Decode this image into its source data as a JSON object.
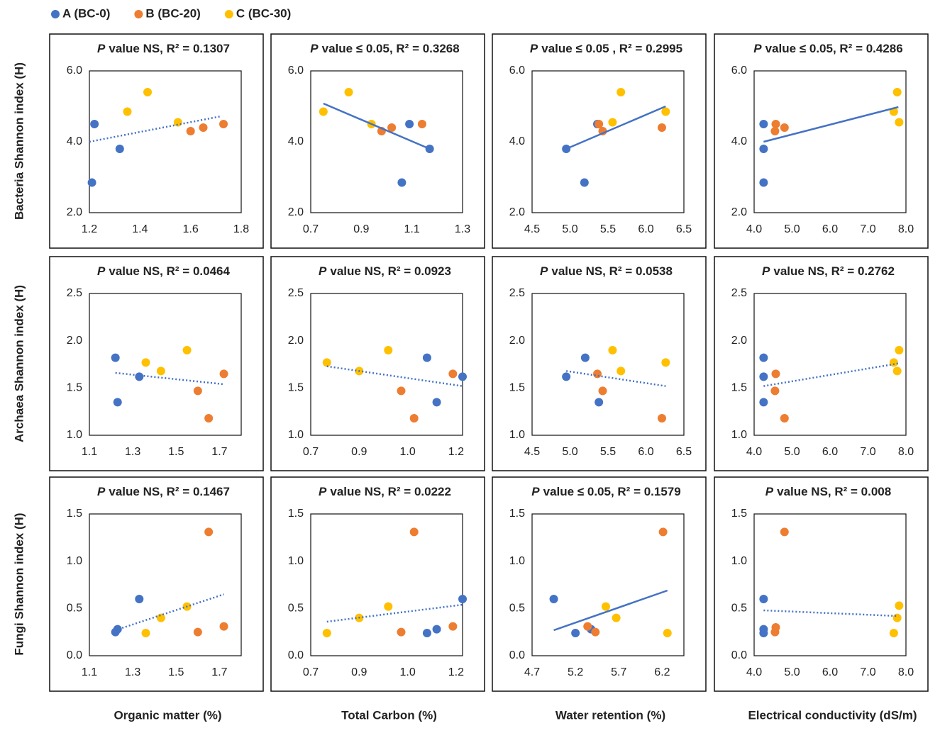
{
  "legend": [
    {
      "name": "A (BC-0)",
      "color": "#4472c4"
    },
    {
      "name": "B (BC-20)",
      "color": "#ed7d31"
    },
    {
      "name": "C (BC-30)",
      "color": "#ffc000"
    }
  ],
  "row_labels": [
    "Bacteria Shannon index (H)",
    "Archaea Shannon index (H)",
    "Fungi Shannon index (H)"
  ],
  "column_labels": [
    "Organic matter (%)",
    "Total Carbon (%)",
    "Water retention (%)",
    "Electrical conductivity (dS/m)"
  ],
  "chart_data": [
    {
      "type": "scatter",
      "p": "P",
      "title": "value NS, R² = 0.1307",
      "xlim": [
        1.2,
        1.8
      ],
      "xticks": [
        1.2,
        1.4,
        1.6,
        1.8
      ],
      "ylim": [
        2,
        6
      ],
      "yticks": [
        {
          "value": 2,
          "label": "2.0"
        },
        {
          "value": 4,
          "label": "4.0"
        },
        {
          "value": 6,
          "label": "6.0"
        }
      ],
      "series": [
        {
          "x": [
            1.22,
            1.32,
            1.21
          ],
          "y": [
            4.5,
            3.8,
            2.85
          ]
        },
        {
          "x": [
            1.6,
            1.65,
            1.73
          ],
          "y": [
            4.3,
            4.4,
            4.5
          ]
        },
        {
          "x": [
            1.35,
            1.43,
            1.55
          ],
          "y": [
            4.85,
            5.4,
            4.55
          ]
        }
      ],
      "trendline": {
        "x": [
          1.2,
          1.72
        ],
        "y": [
          4.0,
          4.72
        ],
        "style": "dotted"
      }
    },
    {
      "type": "scatter",
      "p": "P",
      "title": "value ≤ 0.05, R² = 0.3268",
      "xlim": [
        0.7,
        1.3
      ],
      "xticks": [
        0.7,
        0.9,
        1.1,
        1.3
      ],
      "ylim": [
        2,
        6
      ],
      "yticks": [
        {
          "value": 2,
          "label": "2.0"
        },
        {
          "value": 4,
          "label": "4.0"
        },
        {
          "value": 6,
          "label": "6.0"
        }
      ],
      "series": [
        {
          "x": [
            1.09,
            1.06,
            1.17
          ],
          "y": [
            4.5,
            2.85,
            3.8
          ]
        },
        {
          "x": [
            0.98,
            1.02,
            1.14
          ],
          "y": [
            4.3,
            4.4,
            4.5
          ]
        },
        {
          "x": [
            0.75,
            0.85,
            0.94
          ],
          "y": [
            4.85,
            5.4,
            4.5
          ]
        }
      ],
      "trendline": {
        "x": [
          0.75,
          1.17
        ],
        "y": [
          5.08,
          3.8
        ],
        "style": "solid"
      }
    },
    {
      "type": "scatter",
      "p": "P",
      "title": "value ≤ 0.05 , R² = 0.2995",
      "xlim": [
        4.5,
        6.5
      ],
      "xticks": [
        4.5,
        {
          "value": 5,
          "label": "5.0"
        },
        5.5,
        {
          "value": 6,
          "label": "6.0"
        },
        6.5
      ],
      "ylim": [
        2,
        6
      ],
      "yticks": [
        {
          "value": 2,
          "label": "2.0"
        },
        {
          "value": 4,
          "label": "4.0"
        },
        {
          "value": 6,
          "label": "6.0"
        }
      ],
      "series": [
        {
          "x": [
            4.95,
            5.19,
            5.36
          ],
          "y": [
            3.8,
            2.85,
            4.5
          ]
        },
        {
          "x": [
            5.38,
            5.43,
            6.21
          ],
          "y": [
            4.5,
            4.3,
            4.4
          ]
        },
        {
          "x": [
            5.56,
            5.67,
            6.26
          ],
          "y": [
            4.55,
            5.4,
            4.85
          ]
        }
      ],
      "trendline": {
        "x": [
          4.95,
          6.26
        ],
        "y": [
          3.8,
          5.0
        ],
        "style": "solid"
      }
    },
    {
      "type": "scatter",
      "p": "P",
      "title": "value ≤ 0.05, R² = 0.4286",
      "xlim": [
        4,
        8
      ],
      "xticks": [
        {
          "value": 4,
          "label": "4.0"
        },
        {
          "value": 5,
          "label": "5.0"
        },
        {
          "value": 6,
          "label": "6.0"
        },
        {
          "value": 7,
          "label": "7.0"
        },
        {
          "value": 8,
          "label": "8.0"
        }
      ],
      "ylim": [
        2,
        6
      ],
      "yticks": [
        {
          "value": 2,
          "label": "2.0"
        },
        {
          "value": 4,
          "label": "4.0"
        },
        {
          "value": 6,
          "label": "6.0"
        }
      ],
      "series": [
        {
          "x": [
            4.25,
            4.25,
            4.25
          ],
          "y": [
            4.5,
            3.8,
            2.85
          ]
        },
        {
          "x": [
            4.55,
            4.57,
            4.8
          ],
          "y": [
            4.3,
            4.5,
            4.4
          ]
        },
        {
          "x": [
            7.77,
            7.68,
            7.82
          ],
          "y": [
            5.4,
            4.85,
            4.55
          ]
        }
      ],
      "trendline": {
        "x": [
          4.25,
          7.8
        ],
        "y": [
          4.0,
          4.98
        ],
        "style": "solid"
      }
    },
    {
      "type": "scatter",
      "p": "P",
      "title": "value NS, R² = 0.0464",
      "xlim": [
        1.1,
        1.8
      ],
      "xticks": [
        1.1,
        1.3,
        1.5,
        1.7
      ],
      "ylim": [
        1,
        2.5
      ],
      "yticks": [
        {
          "value": 1,
          "label": "1.0"
        },
        1.5,
        {
          "value": 2,
          "label": "2.0"
        },
        2.5
      ],
      "series": [
        {
          "x": [
            1.22,
            1.23,
            1.33
          ],
          "y": [
            1.82,
            1.35,
            1.62
          ]
        },
        {
          "x": [
            1.6,
            1.65,
            1.72
          ],
          "y": [
            1.47,
            1.18,
            1.65
          ]
        },
        {
          "x": [
            1.36,
            1.43,
            1.55
          ],
          "y": [
            1.77,
            1.68,
            1.9
          ]
        }
      ],
      "trendline": {
        "x": [
          1.22,
          1.72
        ],
        "y": [
          1.66,
          1.54
        ],
        "style": "dotted"
      }
    },
    {
      "type": "scatter",
      "p": "P",
      "title": "value NS, R² = 0.0923",
      "xlim": [
        0.7,
        1.17
      ],
      "xticks": [
        0.7,
        {
          "value": 0.85,
          "label": "0.9"
        },
        {
          "value": 1,
          "label": "1.0"
        },
        {
          "value": 1.15,
          "label": "1.2"
        }
      ],
      "ylim": [
        1,
        2.5
      ],
      "yticks": [
        {
          "value": 1,
          "label": "1.0"
        },
        1.5,
        {
          "value": 2,
          "label": "2.0"
        },
        2.5
      ],
      "series": [
        {
          "x": [
            1.06,
            1.09,
            1.17
          ],
          "y": [
            1.82,
            1.35,
            1.62
          ]
        },
        {
          "x": [
            0.98,
            1.02,
            1.14
          ],
          "y": [
            1.47,
            1.18,
            1.65
          ]
        },
        {
          "x": [
            0.75,
            0.85,
            0.94
          ],
          "y": [
            1.77,
            1.68,
            1.9
          ]
        }
      ],
      "trendline": {
        "x": [
          0.75,
          1.17
        ],
        "y": [
          1.73,
          1.52
        ],
        "style": "dotted"
      }
    },
    {
      "type": "scatter",
      "p": "P",
      "title": "value NS, R² = 0.0538",
      "xlim": [
        4.5,
        6.5
      ],
      "xticks": [
        4.5,
        {
          "value": 5,
          "label": "5.0"
        },
        5.5,
        {
          "value": 6,
          "label": "6.0"
        },
        6.5
      ],
      "ylim": [
        1,
        2.5
      ],
      "yticks": [
        {
          "value": 1,
          "label": "1.0"
        },
        1.5,
        {
          "value": 2,
          "label": "2.0"
        },
        2.5
      ],
      "series": [
        {
          "x": [
            4.95,
            5.2,
            5.38
          ],
          "y": [
            1.62,
            1.82,
            1.35
          ]
        },
        {
          "x": [
            5.36,
            5.43,
            6.21
          ],
          "y": [
            1.65,
            1.47,
            1.18
          ]
        },
        {
          "x": [
            5.56,
            5.67,
            6.26
          ],
          "y": [
            1.9,
            1.68,
            1.77
          ]
        }
      ],
      "trendline": {
        "x": [
          4.95,
          6.26
        ],
        "y": [
          1.68,
          1.52
        ],
        "style": "dotted"
      }
    },
    {
      "type": "scatter",
      "p": "P",
      "title": "value NS, R² = 0.2762",
      "xlim": [
        4,
        8
      ],
      "xticks": [
        {
          "value": 4,
          "label": "4.0"
        },
        {
          "value": 5,
          "label": "5.0"
        },
        {
          "value": 6,
          "label": "6.0"
        },
        {
          "value": 7,
          "label": "7.0"
        },
        {
          "value": 8,
          "label": "8.0"
        }
      ],
      "ylim": [
        1,
        2.5
      ],
      "yticks": [
        {
          "value": 1,
          "label": "1.0"
        },
        1.5,
        {
          "value": 2,
          "label": "2.0"
        },
        2.5
      ],
      "series": [
        {
          "x": [
            4.25,
            4.25,
            4.25
          ],
          "y": [
            1.82,
            1.62,
            1.35
          ]
        },
        {
          "x": [
            4.55,
            4.57,
            4.8
          ],
          "y": [
            1.47,
            1.65,
            1.18
          ]
        },
        {
          "x": [
            7.82,
            7.68,
            7.77
          ],
          "y": [
            1.9,
            1.77,
            1.68
          ]
        }
      ],
      "trendline": {
        "x": [
          4.25,
          7.8
        ],
        "y": [
          1.52,
          1.76
        ],
        "style": "dotted"
      }
    },
    {
      "type": "scatter",
      "p": "P",
      "title": "value NS, R² = 0.1467",
      "xlim": [
        1.1,
        1.8
      ],
      "xticks": [
        1.1,
        1.3,
        1.5,
        1.7
      ],
      "ylim": [
        0,
        1.5
      ],
      "yticks": [
        {
          "value": 0,
          "label": "0.0"
        },
        0.5,
        {
          "value": 1,
          "label": "1.0"
        },
        1.5
      ],
      "series": [
        {
          "x": [
            1.22,
            1.23,
            1.33
          ],
          "y": [
            0.25,
            0.28,
            0.6
          ]
        },
        {
          "x": [
            1.6,
            1.65,
            1.72
          ],
          "y": [
            0.25,
            1.31,
            0.31
          ]
        },
        {
          "x": [
            1.36,
            1.43,
            1.55
          ],
          "y": [
            0.24,
            0.4,
            0.52
          ]
        }
      ],
      "trendline": {
        "x": [
          1.22,
          1.72
        ],
        "y": [
          0.27,
          0.65
        ],
        "style": "dotted"
      }
    },
    {
      "type": "scatter",
      "p": "P",
      "title": "value NS, R² = 0.0222",
      "xlim": [
        0.7,
        1.17
      ],
      "xticks": [
        0.7,
        {
          "value": 0.85,
          "label": "0.9"
        },
        {
          "value": 1,
          "label": "1.0"
        },
        {
          "value": 1.15,
          "label": "1.2"
        }
      ],
      "ylim": [
        0,
        1.5
      ],
      "yticks": [
        {
          "value": 0,
          "label": "0.0"
        },
        0.5,
        {
          "value": 1,
          "label": "1.0"
        },
        1.5
      ],
      "series": [
        {
          "x": [
            1.06,
            1.09,
            1.17
          ],
          "y": [
            0.24,
            0.28,
            0.6
          ]
        },
        {
          "x": [
            0.98,
            1.02,
            1.14
          ],
          "y": [
            0.25,
            1.31,
            0.31
          ]
        },
        {
          "x": [
            0.75,
            0.85,
            0.94
          ],
          "y": [
            0.24,
            0.4,
            0.52
          ]
        }
      ],
      "trendline": {
        "x": [
          0.75,
          1.17
        ],
        "y": [
          0.36,
          0.54
        ],
        "style": "dotted"
      }
    },
    {
      "type": "scatter",
      "p": "P",
      "title": "value ≤ 0.05, R² = 0.1579",
      "xlim": [
        4.7,
        6.45
      ],
      "xticks": [
        4.7,
        5.2,
        5.7,
        6.2
      ],
      "ylim": [
        0,
        1.5
      ],
      "yticks": [
        {
          "value": 0,
          "label": "0.0"
        },
        0.5,
        {
          "value": 1,
          "label": "1.0"
        },
        1.5
      ],
      "series": [
        {
          "x": [
            4.95,
            5.2,
            5.38
          ],
          "y": [
            0.6,
            0.24,
            0.28
          ]
        },
        {
          "x": [
            5.34,
            5.43,
            6.21
          ],
          "y": [
            0.31,
            0.25,
            1.31
          ]
        },
        {
          "x": [
            5.55,
            5.67,
            6.26
          ],
          "y": [
            0.52,
            0.4,
            0.24
          ]
        }
      ],
      "trendline": {
        "x": [
          4.95,
          6.26
        ],
        "y": [
          0.27,
          0.69
        ],
        "style": "solid"
      }
    },
    {
      "type": "scatter",
      "p": "P",
      "title": "value NS, R² = 0.008",
      "xlim": [
        4,
        8
      ],
      "xticks": [
        {
          "value": 4,
          "label": "4.0"
        },
        {
          "value": 5,
          "label": "5.0"
        },
        {
          "value": 6,
          "label": "6.0"
        },
        {
          "value": 7,
          "label": "7.0"
        },
        {
          "value": 8,
          "label": "8.0"
        }
      ],
      "ylim": [
        0,
        1.5
      ],
      "yticks": [
        {
          "value": 0,
          "label": "0.0"
        },
        0.5,
        {
          "value": 1,
          "label": "1.0"
        },
        1.5
      ],
      "series": [
        {
          "x": [
            4.25,
            4.25,
            4.25
          ],
          "y": [
            0.6,
            0.24,
            0.28
          ]
        },
        {
          "x": [
            4.55,
            4.57,
            4.8
          ],
          "y": [
            0.25,
            0.3,
            1.31
          ]
        },
        {
          "x": [
            7.82,
            7.77,
            7.68
          ],
          "y": [
            0.53,
            0.4,
            0.24
          ]
        }
      ],
      "trendline": {
        "x": [
          4.25,
          7.8
        ],
        "y": [
          0.48,
          0.42
        ],
        "style": "dotted"
      }
    }
  ]
}
